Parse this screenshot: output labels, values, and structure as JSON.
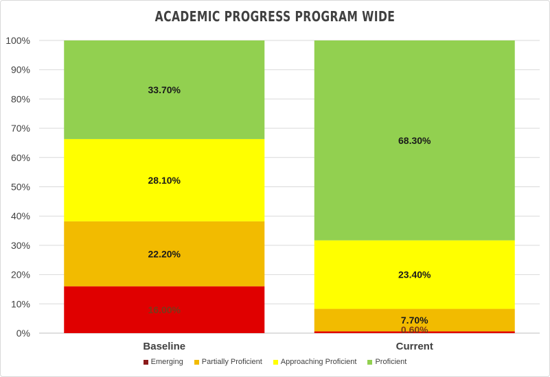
{
  "chart_data": {
    "type": "bar",
    "stacked": true,
    "title": "ACADEMIC PROGRESS PROGRAM WIDE",
    "xlabel": "",
    "ylabel": "",
    "ylim": [
      0,
      100
    ],
    "y_ticks": [
      "0%",
      "10%",
      "20%",
      "30%",
      "40%",
      "50%",
      "60%",
      "70%",
      "80%",
      "90%",
      "100%"
    ],
    "grid": true,
    "legend_position": "bottom",
    "categories": [
      "Baseline",
      "Current"
    ],
    "series": [
      {
        "name": "Emerging",
        "color": "#e00000",
        "values": [
          16.0,
          0.6
        ],
        "labels": [
          "16.00%",
          "0.60%"
        ]
      },
      {
        "name": "Partially Proficient",
        "color": "#f2bb00",
        "values": [
          22.2,
          7.7
        ],
        "labels": [
          "22.20%",
          "7.70%"
        ]
      },
      {
        "name": "Approaching Proficient",
        "color": "#ffff00",
        "values": [
          28.1,
          23.4
        ],
        "labels": [
          "28.10%",
          "23.40%"
        ]
      },
      {
        "name": "Proficient",
        "color": "#92d050",
        "values": [
          33.7,
          68.3
        ],
        "labels": [
          "33.70%",
          "68.30%"
        ]
      }
    ]
  }
}
